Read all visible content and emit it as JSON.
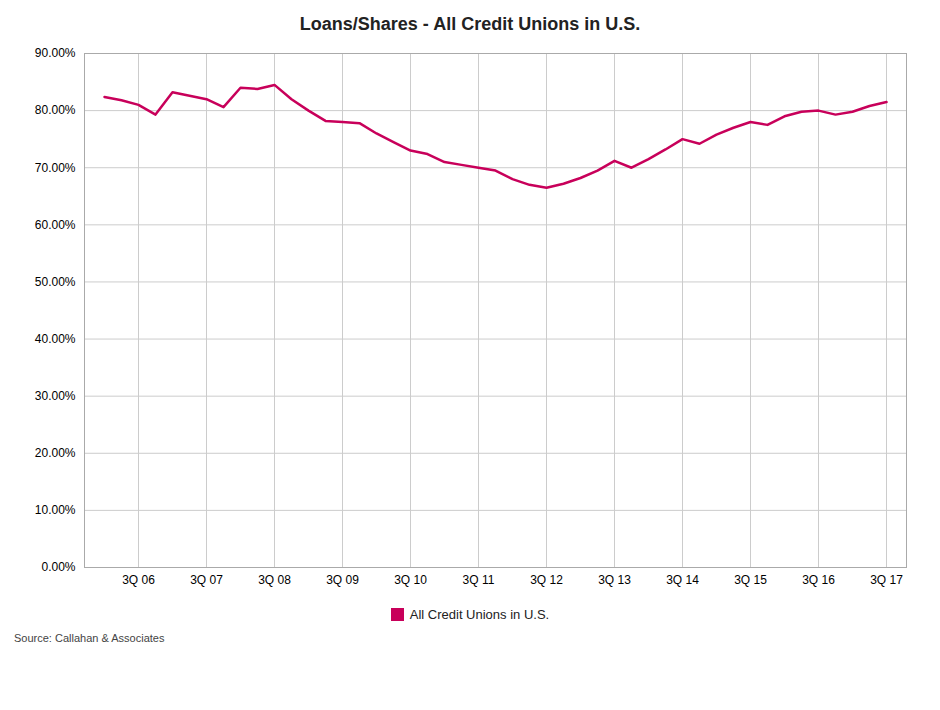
{
  "chart_data": {
    "type": "line",
    "title": "Loans/Shares - All Credit Unions in U.S.",
    "caption": "Source: Callahan & Associates",
    "categories": [
      null,
      null,
      "3Q 06",
      null,
      null,
      null,
      "3Q 07",
      null,
      null,
      null,
      "3Q 08",
      null,
      null,
      null,
      "3Q 09",
      null,
      null,
      null,
      "3Q 10",
      null,
      null,
      null,
      "3Q 11",
      null,
      null,
      null,
      "3Q 12",
      null,
      null,
      null,
      "3Q 13",
      null,
      null,
      null,
      "3Q 14",
      null,
      null,
      null,
      "3Q 15",
      null,
      null,
      null,
      "3Q 16",
      null,
      null,
      null,
      "3Q 17"
    ],
    "series": [
      {
        "name": "All Credit Unions in U.S.",
        "color": "#C8005A",
        "values": [
          0.824,
          0.818,
          0.81,
          0.793,
          0.832,
          0.826,
          0.82,
          0.806,
          0.84,
          0.838,
          0.845,
          0.82,
          0.8,
          0.782,
          0.78,
          0.778,
          0.76,
          0.745,
          0.73,
          0.724,
          0.71,
          0.705,
          0.7,
          0.695,
          0.68,
          0.67,
          0.665,
          0.672,
          0.682,
          0.695,
          0.712,
          0.7,
          0.715,
          0.732,
          0.75,
          0.742,
          0.758,
          0.77,
          0.78,
          0.775,
          0.79,
          0.798,
          0.8,
          0.793,
          0.798,
          0.808,
          0.815
        ]
      }
    ],
    "ylim": [
      0.0,
      0.9
    ],
    "yticks": [
      {
        "value": 0.0,
        "label": "0.00%"
      },
      {
        "value": 0.1,
        "label": "10.00%"
      },
      {
        "value": 0.2,
        "label": "20.00%"
      },
      {
        "value": 0.3,
        "label": "30.00%"
      },
      {
        "value": 0.4,
        "label": "40.00%"
      },
      {
        "value": 0.5,
        "label": "50.00%"
      },
      {
        "value": 0.6,
        "label": "60.00%"
      },
      {
        "value": 0.7,
        "label": "70.00%"
      },
      {
        "value": 0.8,
        "label": "80.00%"
      },
      {
        "value": 0.9,
        "label": "90.00%"
      }
    ],
    "grid": true,
    "legend": "bottom"
  }
}
